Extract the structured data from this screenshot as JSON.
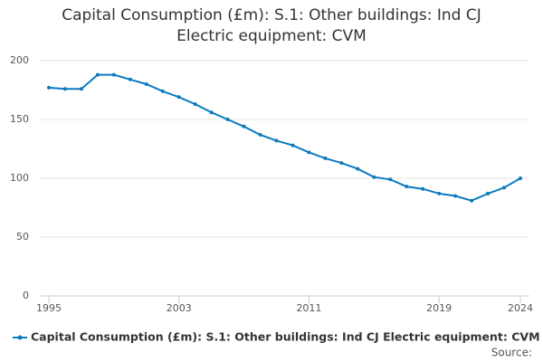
{
  "chart_data": {
    "type": "line",
    "title": "Capital Consumption (£m): S.1: Other buildings: Ind CJ Electric equipment: CVM",
    "x": [
      1995,
      1996,
      1997,
      1998,
      1999,
      2000,
      2001,
      2002,
      2003,
      2004,
      2005,
      2006,
      2007,
      2008,
      2009,
      2010,
      2011,
      2012,
      2013,
      2014,
      2015,
      2016,
      2017,
      2018,
      2019,
      2020,
      2021,
      2022,
      2023,
      2024
    ],
    "series": [
      {
        "name": "Capital Consumption (£m): S.1: Other buildings: Ind CJ Electric equipment: CVM",
        "color": "#0b7bbf",
        "values": [
          177,
          176,
          176,
          188,
          188,
          184,
          180,
          174,
          169,
          163,
          156,
          150,
          144,
          137,
          132,
          128,
          122,
          117,
          113,
          108,
          101,
          99,
          93,
          91,
          87,
          85,
          81,
          87,
          92,
          100
        ]
      }
    ],
    "xlim": [
      1995,
      2024
    ],
    "xticks": [
      1995,
      2003,
      2011,
      2019,
      2024
    ],
    "ylim": [
      0,
      200
    ],
    "yticks": [
      0,
      50,
      100,
      150,
      200
    ],
    "grid": true,
    "source": "Source:"
  }
}
